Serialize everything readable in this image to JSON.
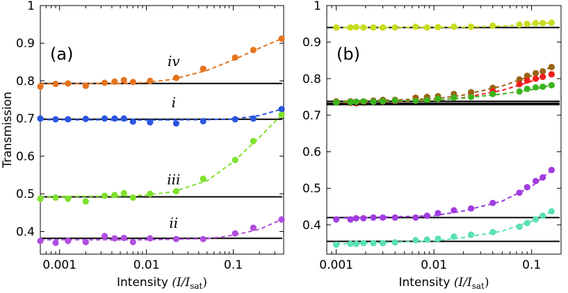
{
  "chart_data": [
    {
      "type": "scatter",
      "panel_label": "(a)",
      "ylabel": "Transmission",
      "xlabel": "Intensity",
      "xlabel_math": "(I/I",
      "xlabel_sub": "sat",
      "xlabel_close": ")",
      "xscale": "log",
      "xlim": [
        0.0006,
        0.38
      ],
      "ylim": [
        0.34,
        1.0
      ],
      "xticks": [
        0.001,
        0.01,
        0.1
      ],
      "xtick_labels": [
        "0.001",
        "0.01",
        "0.1"
      ],
      "yticks": [
        0.4,
        0.5,
        0.6,
        0.7,
        0.8,
        0.9,
        1.0
      ],
      "ytick_labels": [
        "0.4",
        "0.5",
        "0.6",
        "0.7",
        "0.8",
        "0.9",
        "1"
      ],
      "series": [
        {
          "name": "iv",
          "color": "#e5731e",
          "baseline": 0.793,
          "label_at": [
            0.011,
            0.84
          ],
          "x": [
            0.0006,
            0.0009,
            0.00125,
            0.002,
            0.0033,
            0.0043,
            0.0055,
            0.007,
            0.011,
            0.022,
            0.045,
            0.105,
            0.17,
            0.36
          ],
          "y": [
            0.785,
            0.792,
            0.793,
            0.787,
            0.795,
            0.798,
            0.802,
            0.797,
            0.8,
            0.808,
            0.832,
            0.862,
            0.882,
            0.912
          ],
          "fit_x": [
            0.0006,
            0.005,
            0.01,
            0.02,
            0.05,
            0.1,
            0.2,
            0.36
          ],
          "fit_y": [
            0.792,
            0.793,
            0.796,
            0.804,
            0.828,
            0.856,
            0.887,
            0.912
          ]
        },
        {
          "name": "i",
          "color": "#2a55e0",
          "baseline": 0.698,
          "label_at": [
            0.011,
            0.73
          ],
          "x": [
            0.0006,
            0.0009,
            0.00125,
            0.002,
            0.0033,
            0.0043,
            0.0055,
            0.007,
            0.011,
            0.022,
            0.045,
            0.105,
            0.17,
            0.36
          ],
          "y": [
            0.7,
            0.698,
            0.698,
            0.699,
            0.7,
            0.7,
            0.7,
            0.692,
            0.69,
            0.687,
            0.693,
            0.698,
            0.7,
            0.725
          ],
          "fit_x": [
            0.0006,
            0.01,
            0.05,
            0.1,
            0.2,
            0.36
          ],
          "fit_y": [
            0.697,
            0.696,
            0.697,
            0.699,
            0.708,
            0.725
          ]
        },
        {
          "name": "iii",
          "color": "#7ee12c",
          "baseline": 0.492,
          "label_at": [
            0.011,
            0.525
          ],
          "x": [
            0.0006,
            0.0009,
            0.00125,
            0.002,
            0.0033,
            0.0043,
            0.0055,
            0.007,
            0.011,
            0.022,
            0.045,
            0.105,
            0.17,
            0.36
          ],
          "y": [
            0.487,
            0.49,
            0.487,
            0.48,
            0.495,
            0.497,
            0.502,
            0.49,
            0.5,
            0.507,
            0.54,
            0.59,
            0.64,
            0.71
          ],
          "fit_x": [
            0.0006,
            0.005,
            0.01,
            0.02,
            0.05,
            0.1,
            0.2,
            0.36
          ],
          "fit_y": [
            0.493,
            0.494,
            0.497,
            0.505,
            0.535,
            0.585,
            0.65,
            0.71
          ]
        },
        {
          "name": "ii",
          "color": "#b04fe0",
          "baseline": 0.382,
          "label_at": [
            0.011,
            0.41
          ],
          "x": [
            0.0006,
            0.0009,
            0.00125,
            0.002,
            0.0033,
            0.0043,
            0.0055,
            0.007,
            0.011,
            0.022,
            0.045,
            0.105,
            0.17,
            0.36
          ],
          "y": [
            0.375,
            0.37,
            0.375,
            0.372,
            0.388,
            0.382,
            0.383,
            0.372,
            0.382,
            0.38,
            0.38,
            0.395,
            0.41,
            0.432
          ],
          "fit_x": [
            0.0006,
            0.01,
            0.05,
            0.1,
            0.2,
            0.36
          ],
          "fit_y": [
            0.378,
            0.378,
            0.381,
            0.39,
            0.406,
            0.432
          ]
        }
      ]
    },
    {
      "type": "scatter",
      "panel_label": "(b)",
      "xlabel": "Intensity",
      "xlabel_math": "(I/I",
      "xlabel_sub": "sat",
      "xlabel_close": ")",
      "xscale": "log",
      "xlim": [
        0.0008,
        0.2
      ],
      "ylim": [
        0.32,
        1.0
      ],
      "xticks": [
        0.001,
        0.01,
        0.1
      ],
      "xtick_labels": [
        "0.001",
        "0.01",
        "0.1"
      ],
      "yticks": [
        0.4,
        0.5,
        0.6,
        0.7,
        0.8,
        0.9,
        1.0
      ],
      "ytick_labels": [
        "0.4",
        "0.5",
        "0.6",
        "0.7",
        "0.8",
        "0.9",
        "1"
      ],
      "series": [
        {
          "name": "yellow-green",
          "color": "#c8dc1e",
          "baseline": 0.94,
          "x": [
            0.001,
            0.0014,
            0.0016,
            0.0019,
            0.0024,
            0.003,
            0.004,
            0.0065,
            0.0085,
            0.011,
            0.016,
            0.024,
            0.04,
            0.075,
            0.09,
            0.11,
            0.13,
            0.16
          ],
          "y": [
            0.94,
            0.94,
            0.941,
            0.94,
            0.94,
            0.94,
            0.94,
            0.942,
            0.94,
            0.941,
            0.942,
            0.942,
            0.945,
            0.948,
            0.95,
            0.952,
            0.952,
            0.953
          ],
          "fit_x": [
            0.001,
            0.02,
            0.05,
            0.1,
            0.16
          ],
          "fit_y": [
            0.94,
            0.941,
            0.944,
            0.949,
            0.953
          ]
        },
        {
          "name": "brown",
          "color": "#9a6414",
          "baseline": 0.738,
          "x": [
            0.001,
            0.0014,
            0.0016,
            0.0019,
            0.0024,
            0.003,
            0.004,
            0.0065,
            0.0085,
            0.011,
            0.016,
            0.024,
            0.04,
            0.075,
            0.09,
            0.11,
            0.13,
            0.16
          ],
          "y": [
            0.738,
            0.738,
            0.737,
            0.738,
            0.74,
            0.742,
            0.742,
            0.748,
            0.75,
            0.752,
            0.758,
            0.763,
            0.775,
            0.798,
            0.808,
            0.815,
            0.82,
            0.832
          ],
          "fit_x": [
            0.001,
            0.01,
            0.02,
            0.05,
            0.1,
            0.16
          ],
          "fit_y": [
            0.738,
            0.745,
            0.755,
            0.78,
            0.808,
            0.832
          ]
        },
        {
          "name": "red",
          "color": "#f01e1e",
          "baseline": 0.733,
          "x": [
            0.001,
            0.0014,
            0.0016,
            0.0019,
            0.0024,
            0.003,
            0.004,
            0.0065,
            0.0085,
            0.011,
            0.016,
            0.024,
            0.04,
            0.075,
            0.09,
            0.11,
            0.13,
            0.16
          ],
          "y": [
            0.735,
            0.734,
            0.733,
            0.735,
            0.737,
            0.738,
            0.738,
            0.742,
            0.743,
            0.745,
            0.748,
            0.752,
            0.765,
            0.785,
            0.795,
            0.8,
            0.805,
            0.812
          ],
          "fit_x": [
            0.001,
            0.01,
            0.02,
            0.05,
            0.1,
            0.16
          ],
          "fit_y": [
            0.734,
            0.74,
            0.748,
            0.768,
            0.793,
            0.812
          ]
        },
        {
          "name": "green",
          "color": "#3cb41e",
          "baseline": 0.729,
          "x": [
            0.001,
            0.0014,
            0.0016,
            0.0019,
            0.0024,
            0.003,
            0.004,
            0.0065,
            0.0085,
            0.011,
            0.016,
            0.024,
            0.04,
            0.075,
            0.09,
            0.11,
            0.13,
            0.16
          ],
          "y": [
            0.735,
            0.736,
            0.737,
            0.738,
            0.737,
            0.738,
            0.74,
            0.74,
            0.742,
            0.745,
            0.748,
            0.75,
            0.758,
            0.765,
            0.772,
            0.776,
            0.778,
            0.782
          ],
          "fit_x": [
            0.001,
            0.01,
            0.02,
            0.05,
            0.1,
            0.16
          ],
          "fit_y": [
            0.736,
            0.741,
            0.747,
            0.758,
            0.77,
            0.782
          ]
        },
        {
          "name": "purple",
          "color": "#a03ce0",
          "baseline": 0.42,
          "x": [
            0.001,
            0.0014,
            0.0016,
            0.0019,
            0.0024,
            0.003,
            0.004,
            0.0065,
            0.0085,
            0.011,
            0.016,
            0.024,
            0.04,
            0.075,
            0.09,
            0.11,
            0.13,
            0.16
          ],
          "y": [
            0.415,
            0.415,
            0.418,
            0.418,
            0.42,
            0.42,
            0.42,
            0.42,
            0.425,
            0.432,
            0.44,
            0.445,
            0.46,
            0.488,
            0.503,
            0.52,
            0.53,
            0.55
          ],
          "fit_x": [
            0.001,
            0.01,
            0.02,
            0.05,
            0.1,
            0.16
          ],
          "fit_y": [
            0.418,
            0.425,
            0.438,
            0.465,
            0.505,
            0.55
          ]
        },
        {
          "name": "aqua",
          "color": "#5ae0b4",
          "baseline": 0.355,
          "x": [
            0.001,
            0.0014,
            0.0016,
            0.0019,
            0.0024,
            0.003,
            0.004,
            0.0065,
            0.0085,
            0.011,
            0.016,
            0.024,
            0.04,
            0.075,
            0.09,
            0.11,
            0.13,
            0.16
          ],
          "y": [
            0.346,
            0.348,
            0.348,
            0.35,
            0.35,
            0.35,
            0.352,
            0.358,
            0.36,
            0.362,
            0.368,
            0.373,
            0.38,
            0.395,
            0.405,
            0.415,
            0.425,
            0.437
          ],
          "fit_x": [
            0.001,
            0.01,
            0.02,
            0.05,
            0.1,
            0.16
          ],
          "fit_y": [
            0.348,
            0.356,
            0.365,
            0.383,
            0.41,
            0.437
          ]
        }
      ]
    }
  ]
}
